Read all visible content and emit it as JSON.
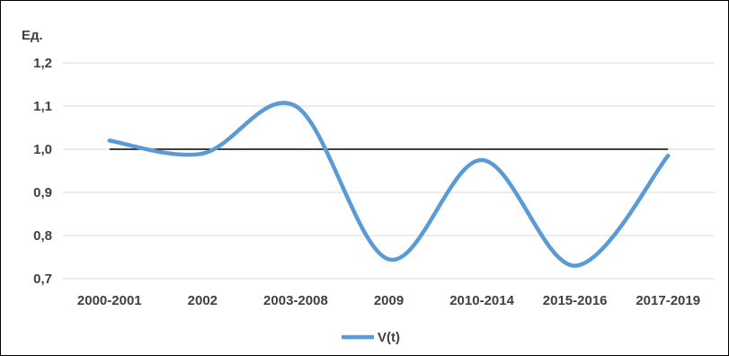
{
  "chart_data": {
    "type": "line",
    "unit_label": "Ед.",
    "categories": [
      "2000-2001",
      "2002",
      "2003-2008",
      "2009",
      "2010-2014",
      "2015-2016",
      "2017-2019"
    ],
    "y_ticks": [
      "0,7",
      "0,8",
      "0,9",
      "1,0",
      "1,1",
      "1,2"
    ],
    "ylim": [
      0.7,
      1.2
    ],
    "grid": true,
    "smooth": true,
    "reference_line": 1.0,
    "legend_position": "bottom",
    "series": [
      {
        "name": "V(t)",
        "color": "#5b9bd5",
        "values": [
          1.02,
          0.99,
          1.1,
          0.745,
          0.975,
          0.73,
          0.985
        ]
      }
    ],
    "reference_color": "#000000"
  }
}
